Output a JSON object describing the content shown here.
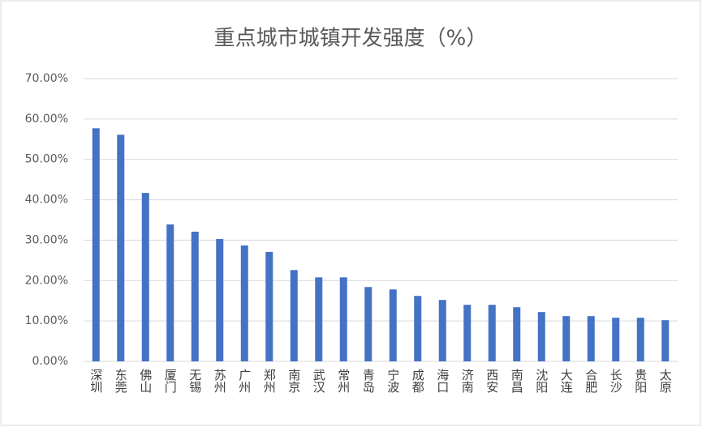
{
  "chart_data": {
    "type": "bar",
    "title": "重点城市城镇开发强度（%）",
    "categories": [
      "深圳",
      "东莞",
      "佛山",
      "厦门",
      "无锡",
      "苏州",
      "广州",
      "郑州",
      "南京",
      "武汉",
      "常州",
      "青岛",
      "宁波",
      "成都",
      "海口",
      "济南",
      "西安",
      "南昌",
      "沈阳",
      "大连",
      "合肥",
      "长沙",
      "贵阳",
      "太原"
    ],
    "values": [
      57.7,
      56.1,
      41.7,
      33.9,
      32.1,
      30.3,
      28.7,
      27.1,
      22.6,
      20.8,
      20.8,
      18.4,
      17.8,
      16.2,
      15.2,
      14.0,
      14.0,
      13.4,
      12.2,
      11.2,
      11.2,
      10.8,
      10.8,
      10.2
    ],
    "color": "#4472c4",
    "ylim": [
      0,
      70
    ],
    "yticks": [
      {
        "value": 0,
        "label": "0.00%"
      },
      {
        "value": 10,
        "label": "10.00%"
      },
      {
        "value": 20,
        "label": "20.00%"
      },
      {
        "value": 30,
        "label": "30.00%"
      },
      {
        "value": 40,
        "label": "40.00%"
      },
      {
        "value": 50,
        "label": "50.00%"
      },
      {
        "value": 60,
        "label": "60.00%"
      },
      {
        "value": 70,
        "label": "70.00%"
      }
    ],
    "grid": true
  }
}
